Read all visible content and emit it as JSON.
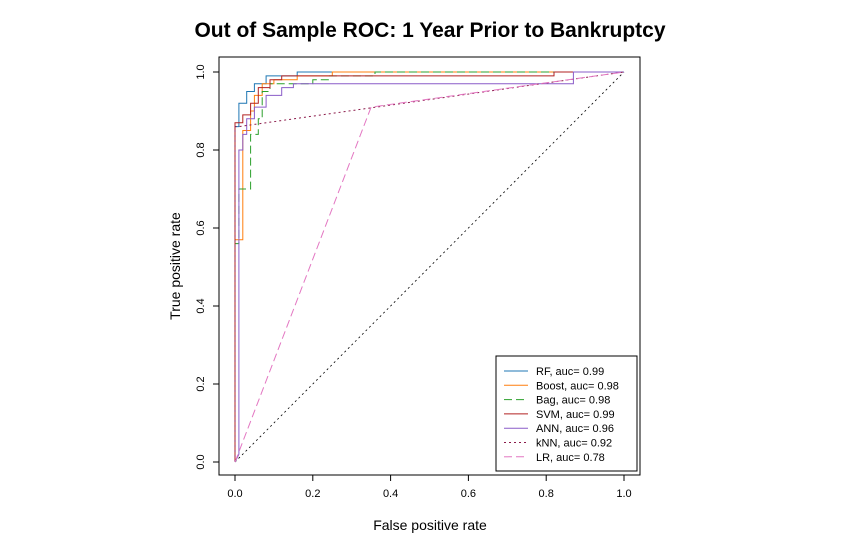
{
  "chart_data": {
    "type": "line",
    "title": "Out of Sample ROC: 1 Year Prior to Bankruptcy",
    "xlabel": "False positive rate",
    "ylabel": "True positive rate",
    "xlim": [
      0,
      1
    ],
    "ylim": [
      0,
      1
    ],
    "x_ticks": [
      "0.0",
      "0.2",
      "0.4",
      "0.6",
      "0.8",
      "1.0"
    ],
    "y_ticks": [
      "0.0",
      "0.2",
      "0.4",
      "0.6",
      "0.8",
      "1.0"
    ],
    "grid": false,
    "legend_position": "bottom-right",
    "diagonal_reference": true,
    "series": [
      {
        "name": "RF, auc= 0.99",
        "color": "#1f77b4",
        "dash": "solid",
        "points": [
          [
            0,
            0
          ],
          [
            0,
            0.86
          ],
          [
            0.01,
            0.86
          ],
          [
            0.01,
            0.92
          ],
          [
            0.03,
            0.92
          ],
          [
            0.03,
            0.95
          ],
          [
            0.05,
            0.95
          ],
          [
            0.05,
            0.97
          ],
          [
            0.08,
            0.97
          ],
          [
            0.08,
            0.99
          ],
          [
            0.16,
            0.99
          ],
          [
            0.16,
            1.0
          ],
          [
            1,
            1
          ]
        ]
      },
      {
        "name": "Boost, auc= 0.98",
        "color": "#ff7f0e",
        "dash": "solid",
        "points": [
          [
            0,
            0
          ],
          [
            0,
            0.57
          ],
          [
            0.02,
            0.57
          ],
          [
            0.02,
            0.85
          ],
          [
            0.04,
            0.85
          ],
          [
            0.04,
            0.9
          ],
          [
            0.05,
            0.9
          ],
          [
            0.05,
            0.94
          ],
          [
            0.07,
            0.94
          ],
          [
            0.07,
            0.97
          ],
          [
            0.1,
            0.97
          ],
          [
            0.1,
            0.98
          ],
          [
            0.16,
            0.98
          ],
          [
            0.16,
            0.99
          ],
          [
            0.25,
            0.99
          ],
          [
            0.25,
            1.0
          ],
          [
            1,
            1
          ]
        ]
      },
      {
        "name": "Bag, auc= 0.98",
        "color": "#2ca02c",
        "dash": "8 4",
        "points": [
          [
            0,
            0
          ],
          [
            0,
            0.56
          ],
          [
            0.01,
            0.56
          ],
          [
            0.01,
            0.7
          ],
          [
            0.04,
            0.7
          ],
          [
            0.04,
            0.84
          ],
          [
            0.06,
            0.84
          ],
          [
            0.06,
            0.88
          ],
          [
            0.07,
            0.88
          ],
          [
            0.07,
            0.95
          ],
          [
            0.09,
            0.95
          ],
          [
            0.09,
            0.97
          ],
          [
            0.2,
            0.97
          ],
          [
            0.2,
            0.98
          ],
          [
            0.24,
            0.98
          ],
          [
            0.24,
            0.99
          ],
          [
            0.36,
            0.99
          ],
          [
            0.36,
            1.0
          ],
          [
            1,
            1
          ]
        ]
      },
      {
        "name": "SVM, auc= 0.99",
        "color": "#b22222",
        "dash": "solid",
        "points": [
          [
            0,
            0
          ],
          [
            0,
            0.87
          ],
          [
            0.02,
            0.87
          ],
          [
            0.02,
            0.89
          ],
          [
            0.04,
            0.89
          ],
          [
            0.04,
            0.92
          ],
          [
            0.06,
            0.92
          ],
          [
            0.06,
            0.96
          ],
          [
            0.09,
            0.96
          ],
          [
            0.09,
            0.98
          ],
          [
            0.12,
            0.98
          ],
          [
            0.12,
            0.99
          ],
          [
            0.82,
            0.99
          ],
          [
            0.82,
            1.0
          ],
          [
            1,
            1
          ]
        ]
      },
      {
        "name": "ANN, auc= 0.96",
        "color": "#8a5cc8",
        "dash": "solid",
        "points": [
          [
            0,
            0
          ],
          [
            0.01,
            0.02
          ],
          [
            0.01,
            0.8
          ],
          [
            0.02,
            0.8
          ],
          [
            0.02,
            0.84
          ],
          [
            0.03,
            0.84
          ],
          [
            0.03,
            0.88
          ],
          [
            0.05,
            0.88
          ],
          [
            0.05,
            0.91
          ],
          [
            0.08,
            0.91
          ],
          [
            0.08,
            0.94
          ],
          [
            0.12,
            0.94
          ],
          [
            0.12,
            0.96
          ],
          [
            0.15,
            0.96
          ],
          [
            0.15,
            0.97
          ],
          [
            0.87,
            0.97
          ],
          [
            0.87,
            1.0
          ],
          [
            1,
            1
          ]
        ]
      },
      {
        "name": "kNN, auc= 0.92",
        "color": "#8b1a4a",
        "dash": "2 3",
        "points": [
          [
            0,
            0
          ],
          [
            0,
            0.86
          ],
          [
            0.01,
            0.86
          ],
          [
            0.01,
            0.86
          ],
          [
            1,
            1
          ]
        ]
      },
      {
        "name": "LR, auc= 0.78",
        "color": "#e377c2",
        "dash": "8 4",
        "points": [
          [
            0,
            0
          ],
          [
            0.35,
            0.91
          ],
          [
            1,
            1
          ]
        ]
      }
    ]
  }
}
